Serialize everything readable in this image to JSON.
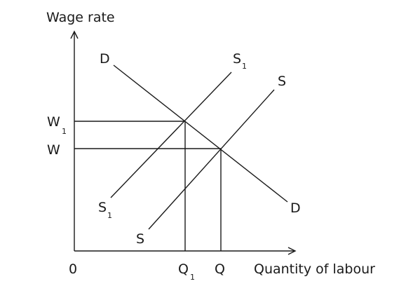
{
  "diagram": {
    "y_axis_label": "Wage rate",
    "x_axis_label": "Quantity of labour",
    "origin_label": "0",
    "wage_labels": {
      "w1_main": "W",
      "w1_sub": "1",
      "w_main": "W"
    },
    "quantity_labels": {
      "q1_main": "Q",
      "q1_sub": "1",
      "q_main": "Q"
    },
    "curve_labels": {
      "demand_top": "D",
      "demand_bottom": "D",
      "supply1_top_main": "S",
      "supply1_top_sub": "1",
      "supply1_bottom_main": "S",
      "supply1_bottom_sub": "1",
      "supply_top": "S",
      "supply_bottom": "S"
    }
  }
}
